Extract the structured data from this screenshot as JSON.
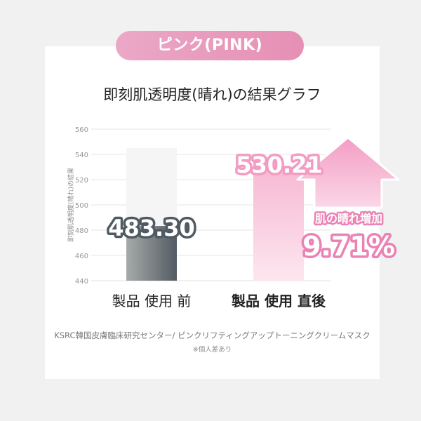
{
  "badge": "ピンク(PINK)",
  "source_note": "KSRC韓国皮膚臨床研究センター/ ピンクリフティングアップトーニングクリームマスク",
  "individual_note": "※個人差あり",
  "colors": {
    "pink": "#f1a1c5",
    "dark": "#555f66",
    "accent": "#ea82b4"
  },
  "chart_data": {
    "type": "bar",
    "title": "即刻肌透明度(晴れ)の結果グラフ",
    "ylabel": "即刻肌透明度(晴れ)の結果",
    "ylim": [
      440,
      560
    ],
    "yticks": [
      "440",
      "460",
      "480",
      "500",
      "520",
      "540",
      "560"
    ],
    "grid": true,
    "categories": [
      "製品 使用 前",
      "製品 使用 直後"
    ],
    "values": [
      483.3,
      530.21
    ],
    "data_labels": [
      "483.30",
      "530.21"
    ],
    "annotation": {
      "line1": "肌の晴れ増加",
      "line2": "9.71%"
    }
  }
}
